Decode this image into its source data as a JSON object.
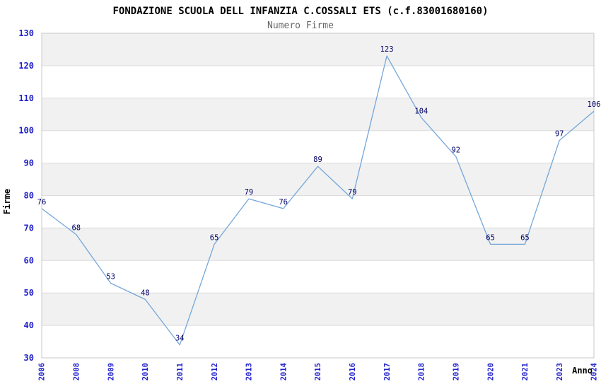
{
  "chart_data": {
    "type": "line",
    "title": "FONDAZIONE SCUOLA DELL INFANZIA C.COSSALI ETS (c.f.83001680160)",
    "subtitle": "Numero Firme",
    "ylabel": "Firme",
    "xlabel": "Anno",
    "categories": [
      "2006",
      "2008",
      "2009",
      "2010",
      "2011",
      "2012",
      "2013",
      "2014",
      "2015",
      "2016",
      "2017",
      "2018",
      "2019",
      "2020",
      "2021",
      "2023",
      "2024"
    ],
    "values": [
      76,
      68,
      53,
      48,
      34,
      65,
      79,
      76,
      89,
      79,
      123,
      104,
      92,
      65,
      65,
      97,
      106
    ],
    "ylim": [
      30,
      130
    ],
    "ytick_step": 10,
    "grid": true,
    "legend_position": "none",
    "colors": {
      "line": "#74a7da",
      "value_labels": "#000066",
      "tick_labels": "#2222cc",
      "band": "#f1f1f1",
      "gridline": "#dcdcdc",
      "frame": "#c8c8c8",
      "title": "#000000",
      "subtitle": "#666666",
      "background": "#ffffff"
    }
  }
}
